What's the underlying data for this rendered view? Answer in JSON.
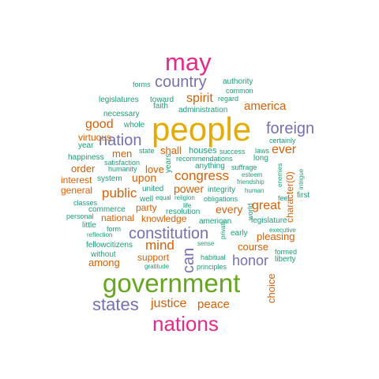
{
  "colors": {
    "teal": "#1b9e77",
    "orange": "#d95f02",
    "purple": "#7570b3",
    "magenta": "#e7298a",
    "green": "#66a61e",
    "gold": "#e6ab02"
  },
  "words": [
    {
      "text": "people",
      "color": "gold",
      "orientation": "horizontal"
    },
    {
      "text": "government",
      "color": "green",
      "orientation": "horizontal"
    },
    {
      "text": "may",
      "color": "magenta",
      "orientation": "horizontal"
    },
    {
      "text": "nations",
      "color": "magenta",
      "orientation": "horizontal"
    },
    {
      "text": "states",
      "color": "purple",
      "orientation": "horizontal"
    },
    {
      "text": "constitution",
      "color": "purple",
      "orientation": "horizontal"
    },
    {
      "text": "country",
      "color": "purple",
      "orientation": "horizontal"
    },
    {
      "text": "foreign",
      "color": "purple",
      "orientation": "horizontal"
    },
    {
      "text": "nation",
      "color": "purple",
      "orientation": "horizontal"
    },
    {
      "text": "can",
      "color": "purple",
      "orientation": "vertical"
    },
    {
      "text": "honor",
      "color": "purple",
      "orientation": "horizontal"
    },
    {
      "text": "justice",
      "color": "orange",
      "orientation": "horizontal"
    },
    {
      "text": "peace",
      "color": "orange",
      "orientation": "horizontal"
    },
    {
      "text": "congress",
      "color": "orange",
      "orientation": "horizontal"
    },
    {
      "text": "public",
      "color": "orange",
      "orientation": "horizontal"
    },
    {
      "text": "mind",
      "color": "orange",
      "orientation": "horizontal"
    },
    {
      "text": "good",
      "color": "orange",
      "orientation": "horizontal"
    },
    {
      "text": "spirit",
      "color": "orange",
      "orientation": "horizontal"
    },
    {
      "text": "america",
      "color": "orange",
      "orientation": "horizontal"
    },
    {
      "text": "ever",
      "color": "orange",
      "orientation": "horizontal"
    },
    {
      "text": "great",
      "color": "orange",
      "orientation": "horizontal"
    },
    {
      "text": "every",
      "color": "orange",
      "orientation": "horizontal"
    },
    {
      "text": "shall",
      "color": "orange",
      "orientation": "horizontal"
    },
    {
      "text": "upon",
      "color": "orange",
      "orientation": "horizontal"
    },
    {
      "text": "power",
      "color": "orange",
      "orientation": "horizontal"
    },
    {
      "text": "love",
      "color": "orange",
      "orientation": "horizontal"
    },
    {
      "text": "men",
      "color": "orange",
      "orientation": "horizontal"
    },
    {
      "text": "order",
      "color": "orange",
      "orientation": "horizontal"
    },
    {
      "text": "interest",
      "color": "orange",
      "orientation": "horizontal"
    },
    {
      "text": "general",
      "color": "orange",
      "orientation": "horizontal"
    },
    {
      "text": "party",
      "color": "orange",
      "orientation": "horizontal"
    },
    {
      "text": "national",
      "color": "orange",
      "orientation": "horizontal"
    },
    {
      "text": "knowledge",
      "color": "orange",
      "orientation": "horizontal"
    },
    {
      "text": "pleasing",
      "color": "orange",
      "orientation": "horizontal"
    },
    {
      "text": "course",
      "color": "orange",
      "orientation": "horizontal"
    },
    {
      "text": "support",
      "color": "orange",
      "orientation": "horizontal"
    },
    {
      "text": "among",
      "color": "orange",
      "orientation": "horizontal"
    },
    {
      "text": "virtuous",
      "color": "orange",
      "orientation": "horizontal"
    },
    {
      "text": "choice",
      "color": "orange",
      "orientation": "vertical"
    },
    {
      "text": "character(0)",
      "color": "orange",
      "orientation": "vertical"
    },
    {
      "text": "authority",
      "color": "teal",
      "orientation": "horizontal"
    },
    {
      "text": "common",
      "color": "teal",
      "orientation": "horizontal"
    },
    {
      "text": "forms",
      "color": "teal",
      "orientation": "horizontal"
    },
    {
      "text": "legislatures",
      "color": "teal",
      "orientation": "horizontal"
    },
    {
      "text": "toward",
      "color": "teal",
      "orientation": "horizontal"
    },
    {
      "text": "regard",
      "color": "teal",
      "orientation": "horizontal"
    },
    {
      "text": "faith",
      "color": "teal",
      "orientation": "horizontal"
    },
    {
      "text": "administration",
      "color": "teal",
      "orientation": "horizontal"
    },
    {
      "text": "necessary",
      "color": "teal",
      "orientation": "horizontal"
    },
    {
      "text": "whole",
      "color": "teal",
      "orientation": "horizontal"
    },
    {
      "text": "year",
      "color": "teal",
      "orientation": "horizontal"
    },
    {
      "text": "state",
      "color": "teal",
      "orientation": "horizontal"
    },
    {
      "text": "houses",
      "color": "teal",
      "orientation": "horizontal"
    },
    {
      "text": "success",
      "color": "teal",
      "orientation": "horizontal"
    },
    {
      "text": "laws",
      "color": "teal",
      "orientation": "horizontal"
    },
    {
      "text": "certainly",
      "color": "teal",
      "orientation": "horizontal"
    },
    {
      "text": "happiness",
      "color": "teal",
      "orientation": "horizontal"
    },
    {
      "text": "satisfaction",
      "color": "teal",
      "orientation": "horizontal"
    },
    {
      "text": "recommendations",
      "color": "teal",
      "orientation": "horizontal"
    },
    {
      "text": "long",
      "color": "teal",
      "orientation": "horizontal"
    },
    {
      "text": "humanity",
      "color": "teal",
      "orientation": "horizontal"
    },
    {
      "text": "years",
      "color": "teal",
      "orientation": "vertical"
    },
    {
      "text": "anything",
      "color": "teal",
      "orientation": "horizontal"
    },
    {
      "text": "suffrage",
      "color": "teal",
      "orientation": "horizontal"
    },
    {
      "text": "esteem",
      "color": "teal",
      "orientation": "horizontal"
    },
    {
      "text": "friendship",
      "color": "teal",
      "orientation": "horizontal"
    },
    {
      "text": "system",
      "color": "teal",
      "orientation": "horizontal"
    },
    {
      "text": "enemies",
      "color": "teal",
      "orientation": "vertical"
    },
    {
      "text": "intrigue",
      "color": "teal",
      "orientation": "vertical"
    },
    {
      "text": "united",
      "color": "teal",
      "orientation": "horizontal"
    },
    {
      "text": "integrity",
      "color": "teal",
      "orientation": "horizontal"
    },
    {
      "text": "human",
      "color": "teal",
      "orientation": "horizontal"
    },
    {
      "text": "feel",
      "color": "teal",
      "orientation": "horizontal"
    },
    {
      "text": "first",
      "color": "teal",
      "orientation": "horizontal"
    },
    {
      "text": "well",
      "color": "teal",
      "orientation": "horizontal"
    },
    {
      "text": "equal",
      "color": "teal",
      "orientation": "horizontal"
    },
    {
      "text": "religion",
      "color": "teal",
      "orientation": "horizontal"
    },
    {
      "text": "obligations",
      "color": "teal",
      "orientation": "horizontal"
    },
    {
      "text": "classes",
      "color": "teal",
      "orientation": "horizontal"
    },
    {
      "text": "life",
      "color": "teal",
      "orientation": "horizontal"
    },
    {
      "text": "commerce",
      "color": "teal",
      "orientation": "horizontal"
    },
    {
      "text": "resolution",
      "color": "teal",
      "orientation": "horizontal"
    },
    {
      "text": "world",
      "color": "teal",
      "orientation": "vertical"
    },
    {
      "text": "personal",
      "color": "teal",
      "orientation": "horizontal"
    },
    {
      "text": "little",
      "color": "teal",
      "orientation": "horizontal"
    },
    {
      "text": "american",
      "color": "teal",
      "orientation": "horizontal"
    },
    {
      "text": "legislature",
      "color": "teal",
      "orientation": "horizontal"
    },
    {
      "text": "executive",
      "color": "teal",
      "orientation": "horizontal"
    },
    {
      "text": "reflection",
      "color": "teal",
      "orientation": "horizontal"
    },
    {
      "text": "form",
      "color": "teal",
      "orientation": "horizontal"
    },
    {
      "text": "sense",
      "color": "teal",
      "orientation": "horizontal"
    },
    {
      "text": "private",
      "color": "teal",
      "orientation": "vertical"
    },
    {
      "text": "early",
      "color": "teal",
      "orientation": "horizontal"
    },
    {
      "text": "fellowcitizens",
      "color": "teal",
      "orientation": "horizontal"
    },
    {
      "text": "formed",
      "color": "teal",
      "orientation": "horizontal"
    },
    {
      "text": "without",
      "color": "teal",
      "orientation": "horizontal"
    },
    {
      "text": "habitual",
      "color": "teal",
      "orientation": "horizontal"
    },
    {
      "text": "liberty",
      "color": "teal",
      "orientation": "horizontal"
    },
    {
      "text": "gratitude",
      "color": "teal",
      "orientation": "horizontal"
    },
    {
      "text": "principles",
      "color": "teal",
      "orientation": "horizontal"
    }
  ]
}
